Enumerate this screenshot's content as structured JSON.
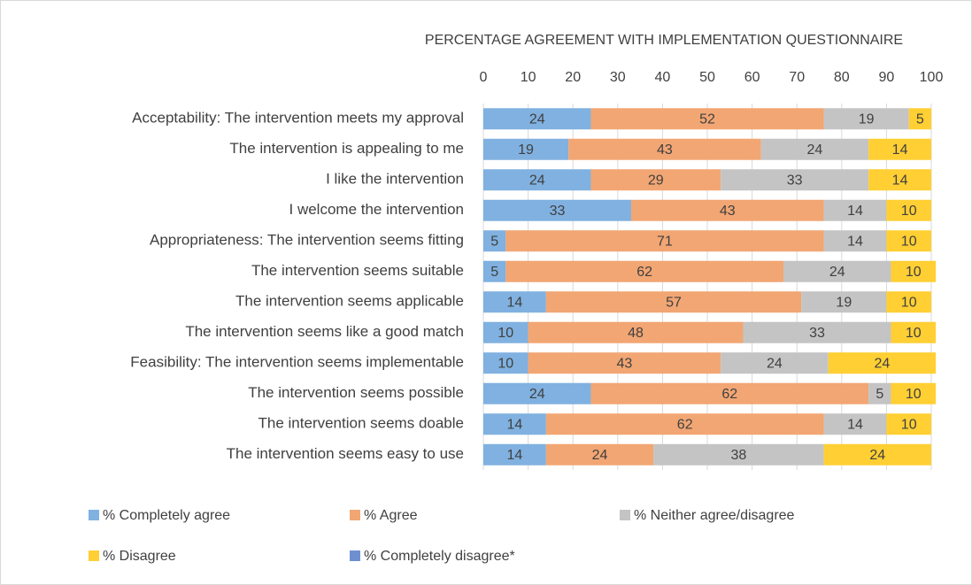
{
  "chart_data": {
    "type": "stacked-bar-horizontal",
    "title": "PERCENTAGE AGREEMENT WITH IMPLEMENTATION QUESTIONNAIRE",
    "categories": [
      "Acceptability:   The intervention meets my approval",
      "The intervention is appealing to me",
      "I like the intervention",
      "I welcome the intervention",
      "Appropriateness: The intervention seems fitting",
      "The intervention seems suitable",
      "The intervention seems applicable",
      "The intervention seems like a good match",
      "Feasibility: The intervention seems implementable",
      "The intervention seems possible",
      "The intervention seems doable",
      "The intervention seems easy to use"
    ],
    "series": [
      {
        "name": "% Completely agree",
        "color": "#80b1e0",
        "values": [
          24,
          19,
          24,
          33,
          5,
          5,
          14,
          10,
          10,
          24,
          14,
          14
        ]
      },
      {
        "name": "% Agree",
        "color": "#f2a673",
        "values": [
          52,
          43,
          29,
          43,
          71,
          62,
          57,
          48,
          43,
          62,
          62,
          24
        ]
      },
      {
        "name": "% Neither agree/disagree",
        "color": "#c4c4c4",
        "values": [
          19,
          24,
          33,
          14,
          14,
          24,
          19,
          33,
          24,
          5,
          14,
          38
        ]
      },
      {
        "name": "% Disagree",
        "color": "#ffcf33",
        "values": [
          5,
          14,
          14,
          10,
          10,
          10,
          10,
          10,
          24,
          10,
          10,
          24
        ]
      },
      {
        "name": "% Completely disagree*",
        "color": "#6f8fd0",
        "values": [
          0,
          0,
          0,
          0,
          0,
          0,
          0,
          0,
          0,
          0,
          0,
          0
        ]
      }
    ],
    "xlim": [
      0,
      100
    ],
    "xticks": [
      0,
      10,
      20,
      30,
      40,
      50,
      60,
      70,
      80,
      90,
      100
    ],
    "grid": true,
    "legend": "bottom"
  }
}
